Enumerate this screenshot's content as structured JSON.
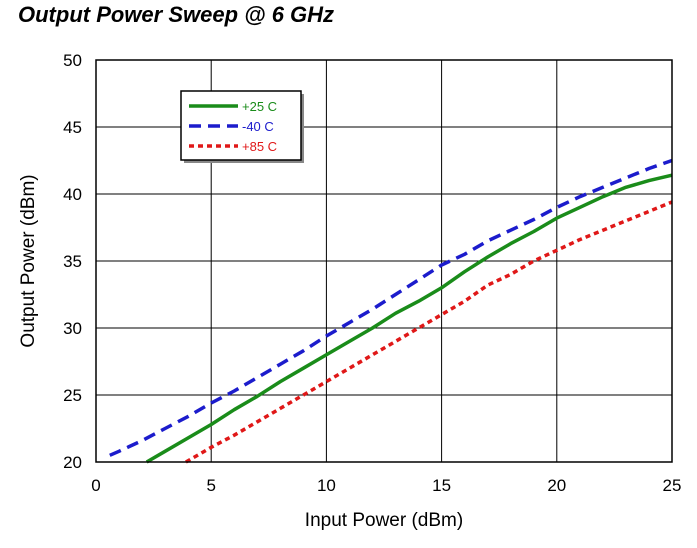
{
  "chart_data": {
    "type": "line",
    "title": "Output Power Sweep @ 6 GHz",
    "xlabel": "Input Power (dBm)",
    "ylabel": "Output Power (dBm)",
    "xlim": [
      0,
      25
    ],
    "ylim": [
      20,
      50
    ],
    "x_ticks": [
      "0",
      "5",
      "10",
      "15",
      "20",
      "25"
    ],
    "y_ticks": [
      "20",
      "25",
      "30",
      "35",
      "40",
      "45",
      "50"
    ],
    "grid": true,
    "legend_position": "top-left",
    "series": [
      {
        "name": "+25 C",
        "color": "#1a8c1a",
        "style": "solid",
        "points": [
          [
            2.2,
            20.0
          ],
          [
            3,
            20.8
          ],
          [
            4,
            21.8
          ],
          [
            5,
            22.8
          ],
          [
            6,
            23.9
          ],
          [
            7,
            24.9
          ],
          [
            8,
            26.0
          ],
          [
            9,
            27.0
          ],
          [
            10,
            28.0
          ],
          [
            11,
            29.0
          ],
          [
            12,
            30.0
          ],
          [
            13,
            31.1
          ],
          [
            14,
            32.0
          ],
          [
            15,
            33.0
          ],
          [
            16,
            34.2
          ],
          [
            17,
            35.3
          ],
          [
            18,
            36.3
          ],
          [
            19,
            37.2
          ],
          [
            20,
            38.2
          ],
          [
            21,
            39.0
          ],
          [
            22,
            39.8
          ],
          [
            23,
            40.5
          ],
          [
            24,
            41.0
          ],
          [
            25,
            41.4
          ]
        ]
      },
      {
        "name": "-40 C",
        "color": "#1c1ccc",
        "style": "dashed",
        "points": [
          [
            0.6,
            20.5
          ],
          [
            1,
            20.8
          ],
          [
            2,
            21.6
          ],
          [
            3,
            22.5
          ],
          [
            4,
            23.4
          ],
          [
            5,
            24.4
          ],
          [
            6,
            25.3
          ],
          [
            7,
            26.3
          ],
          [
            8,
            27.3
          ],
          [
            9,
            28.3
          ],
          [
            10,
            29.4
          ],
          [
            11,
            30.4
          ],
          [
            12,
            31.4
          ],
          [
            13,
            32.5
          ],
          [
            14,
            33.6
          ],
          [
            15,
            34.7
          ],
          [
            16,
            35.5
          ],
          [
            17,
            36.5
          ],
          [
            18,
            37.3
          ],
          [
            19,
            38.1
          ],
          [
            20,
            39.0
          ],
          [
            21,
            39.8
          ],
          [
            22,
            40.5
          ],
          [
            23,
            41.2
          ],
          [
            24,
            41.9
          ],
          [
            25,
            42.5
          ]
        ]
      },
      {
        "name": "+85 C",
        "color": "#e01818",
        "style": "dotted",
        "points": [
          [
            3.9,
            20.0
          ],
          [
            4.5,
            20.6
          ],
          [
            5,
            21.1
          ],
          [
            6,
            22.0
          ],
          [
            7,
            23.0
          ],
          [
            8,
            24.0
          ],
          [
            9,
            25.0
          ],
          [
            10,
            26.0
          ],
          [
            11,
            27.0
          ],
          [
            12,
            28.0
          ],
          [
            13,
            29.0
          ],
          [
            14,
            30.0
          ],
          [
            15,
            31.0
          ],
          [
            16,
            32.0
          ],
          [
            17,
            33.2
          ],
          [
            18,
            34.0
          ],
          [
            19,
            35.0
          ],
          [
            20,
            35.8
          ],
          [
            21,
            36.6
          ],
          [
            22,
            37.3
          ],
          [
            23,
            38.0
          ],
          [
            24,
            38.7
          ],
          [
            25,
            39.4
          ]
        ]
      }
    ]
  }
}
